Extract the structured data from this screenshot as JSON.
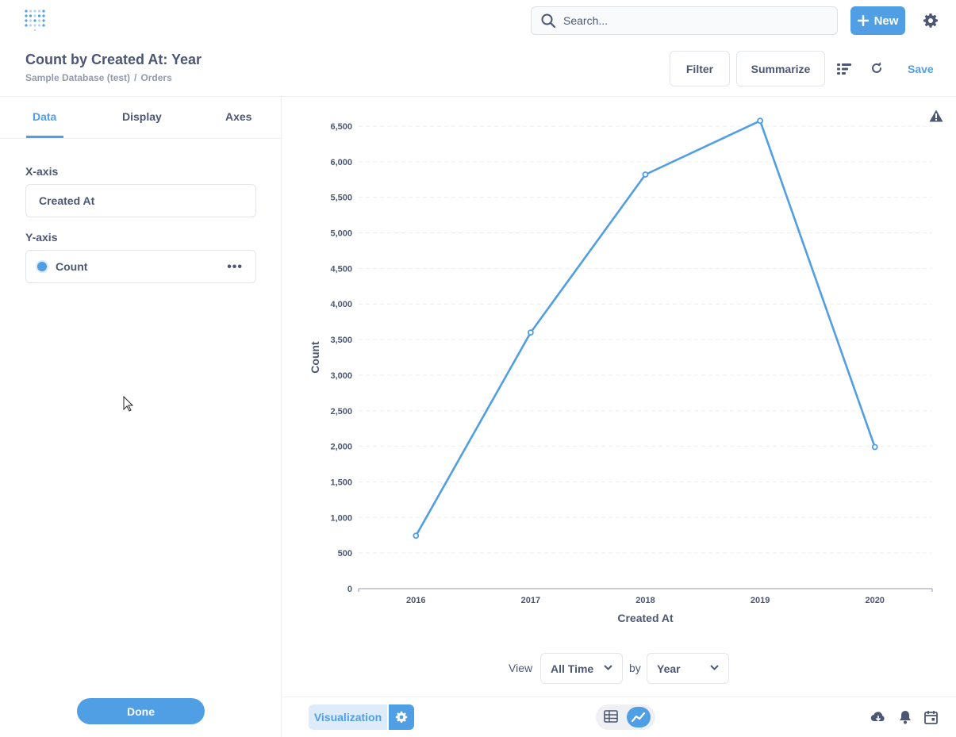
{
  "header": {
    "search_placeholder": "Search...",
    "new_label": "New",
    "title": "Count by Created At: Year",
    "breadcrumb": [
      "Sample Database (test)",
      "Orders"
    ],
    "breadcrumb_sep": "/",
    "filter_label": "Filter",
    "summarize_label": "Summarize",
    "save_label": "Save"
  },
  "sidebar": {
    "tabs": [
      "Data",
      "Display",
      "Axes"
    ],
    "active_tab": "Data",
    "x_axis_label": "X-axis",
    "x_axis_value": "Created At",
    "y_axis_label": "Y-axis",
    "y_axis_series": "Count",
    "done_label": "Done"
  },
  "chart_data": {
    "type": "line",
    "x": [
      "2016",
      "2017",
      "2018",
      "2019",
      "2020"
    ],
    "series": [
      {
        "name": "Count",
        "values": [
          744,
          3600,
          5820,
          6575,
          1990
        ]
      }
    ],
    "xlabel": "Created At",
    "ylabel": "Count",
    "ylim": [
      0,
      6500
    ],
    "yticks": [
      "0",
      "500",
      "1,000",
      "1,500",
      "2,000",
      "2,500",
      "3,000",
      "3,500",
      "4,000",
      "4,500",
      "5,000",
      "5,500",
      "6,000",
      "6,500"
    ],
    "grid": true,
    "color": "#509ee3"
  },
  "view_controls": {
    "view_label": "View",
    "time_value": "All Time",
    "by_label": "by",
    "unit_value": "Year"
  },
  "footer": {
    "visualization_label": "Visualization"
  },
  "colors": {
    "brand": "#509ee3",
    "text": "#4c5773"
  }
}
